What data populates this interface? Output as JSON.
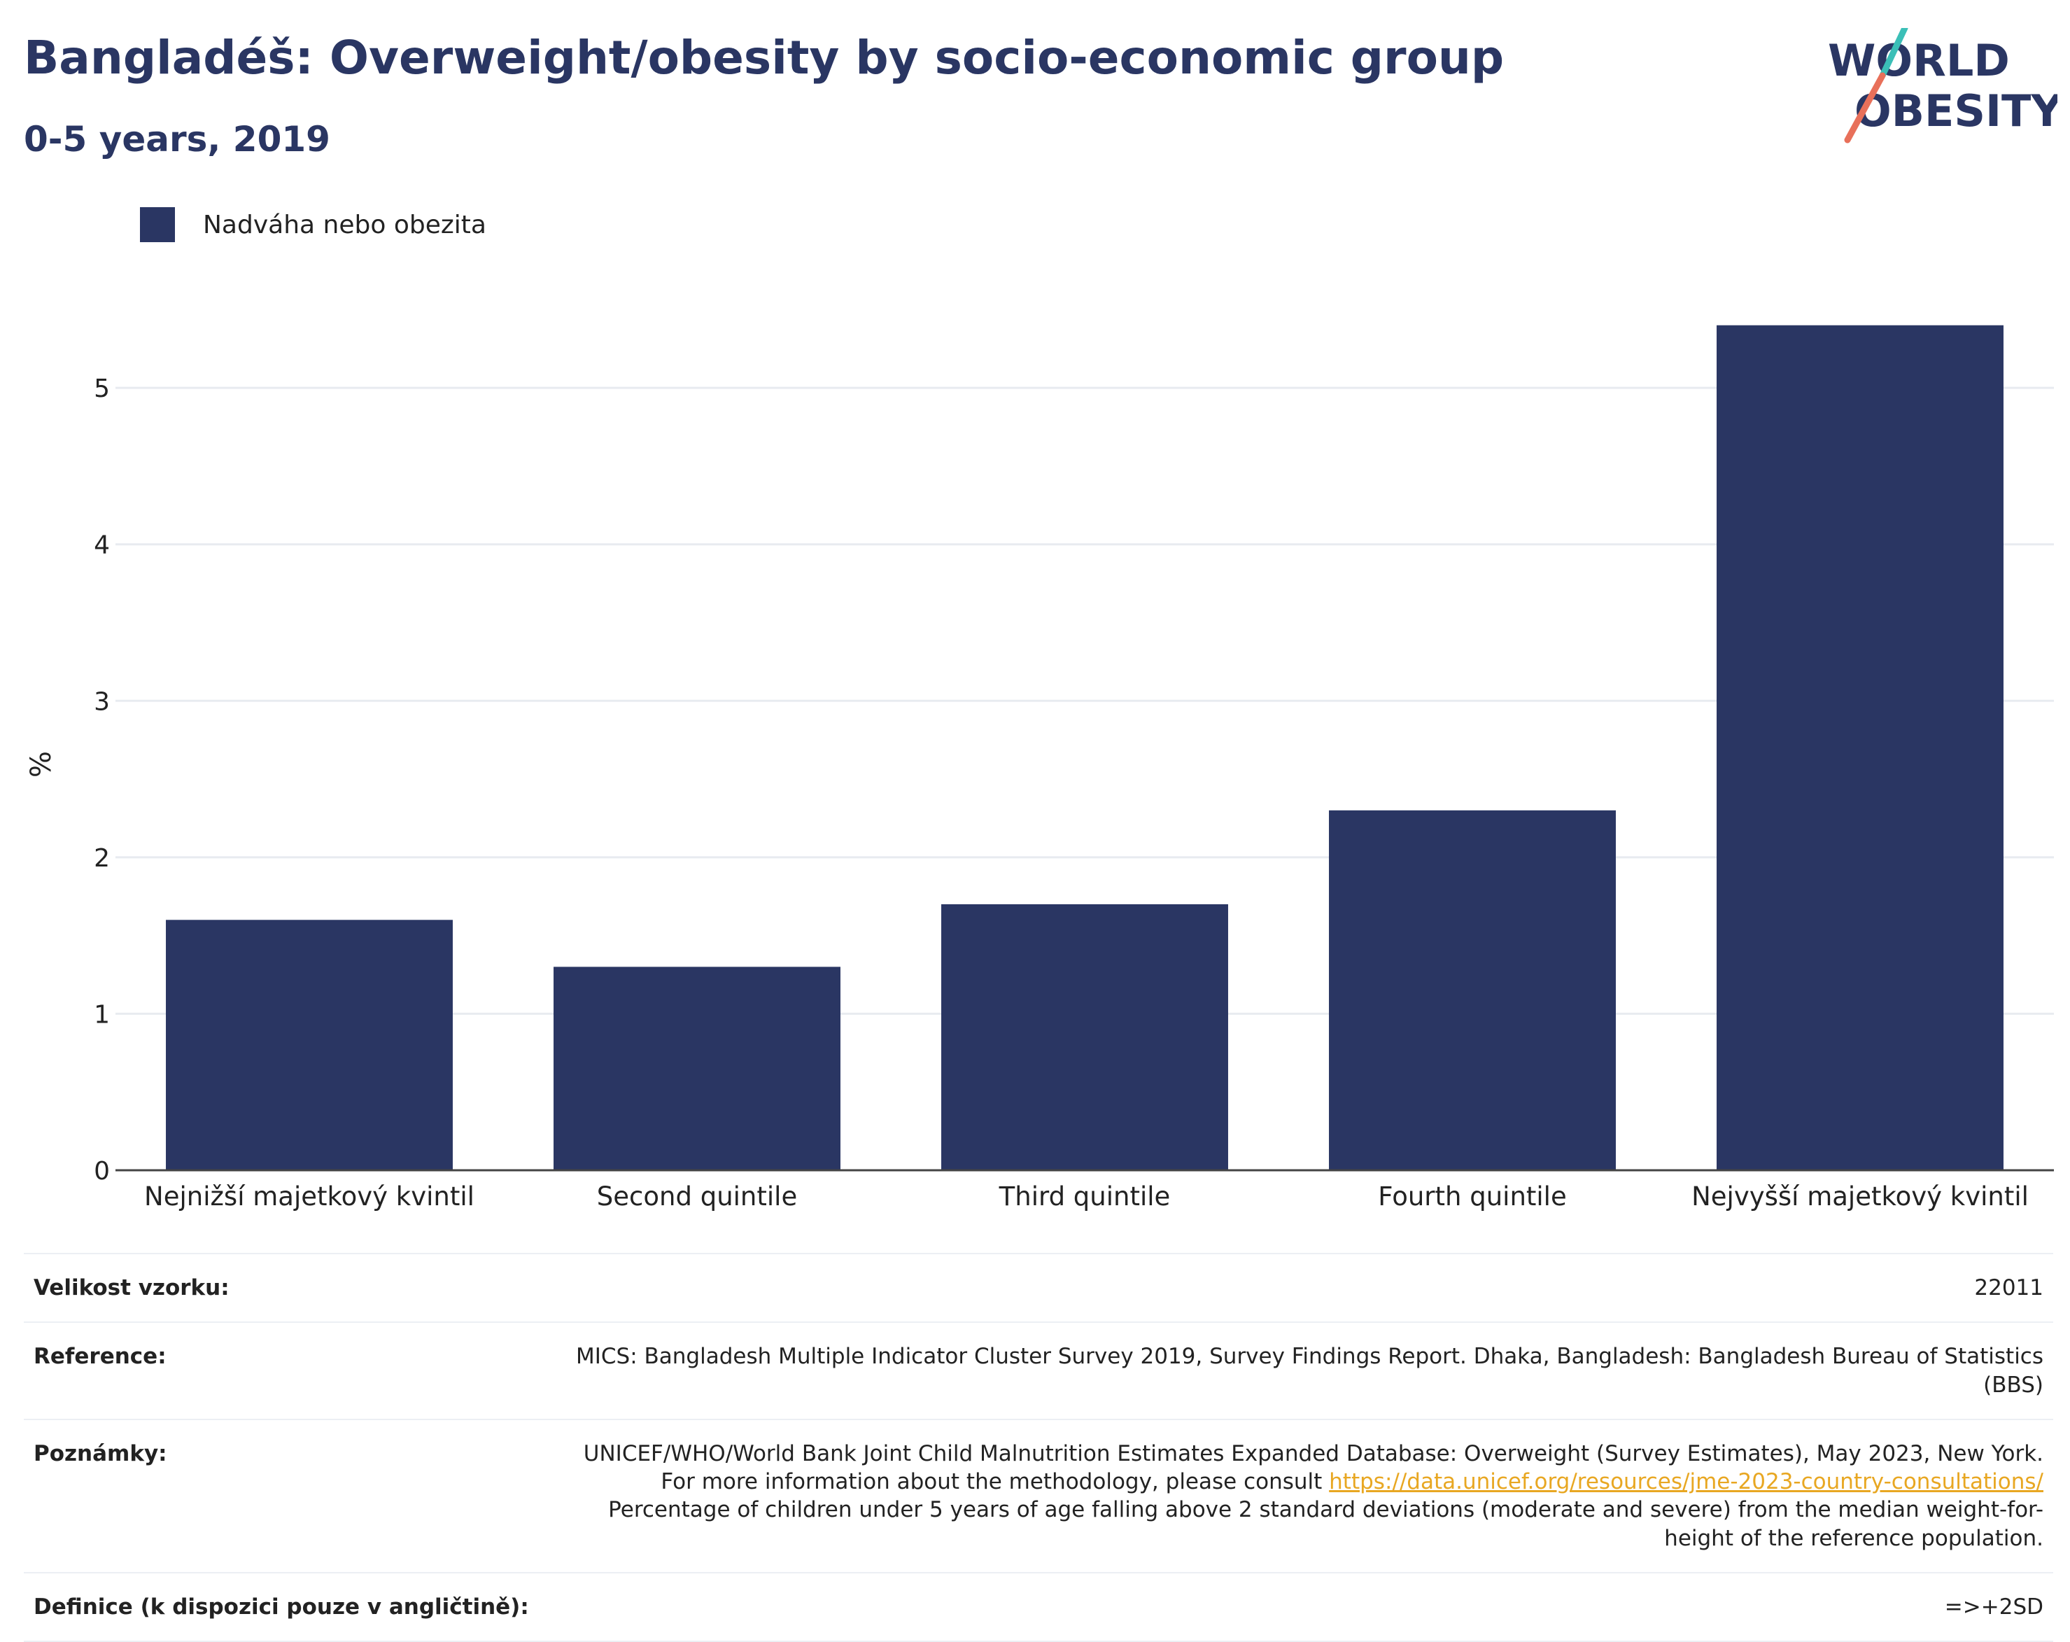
{
  "header": {
    "title": "Bangladéš: Overweight/obesity by socio-economic group",
    "subtitle": "0-5 years, 2019"
  },
  "logo": {
    "line1": "WORLD",
    "line2": "OBESITY",
    "colors": {
      "teal": "#3bbfb7",
      "coral": "#e8705a",
      "navy": "#2a3663"
    }
  },
  "legend": {
    "label": "Nadváha nebo obezita",
    "color": "#2a3663"
  },
  "chart_data": {
    "type": "bar",
    "categories": [
      "Nejnižší majetkový kvintil",
      "Second quintile",
      "Third quintile",
      "Fourth quintile",
      "Nejvyšší majetkový kvintil"
    ],
    "series": [
      {
        "name": "Nadváha nebo obezita",
        "values": [
          1.6,
          1.3,
          1.7,
          2.3,
          5.4
        ]
      }
    ],
    "ylabel": "%",
    "ylim": [
      0,
      5.6
    ],
    "yticks": [
      0,
      1,
      2,
      3,
      4,
      5
    ],
    "grid": true,
    "legend_position": "top-left",
    "bar_color": "#2a3663"
  },
  "info": {
    "sample_size": {
      "label": "Velikost vzorku:",
      "value": "22011"
    },
    "reference": {
      "label": "Reference:",
      "value": "MICS: Bangladesh Multiple Indicator Cluster Survey 2019, Survey Findings Report. Dhaka, Bangladesh: Bangladesh Bureau of Statistics (BBS)"
    },
    "notes": {
      "label": "Poznámky:",
      "text_before": "UNICEF/WHO/World Bank Joint Child Malnutrition Estimates Expanded Database: Overweight (Survey Estimates), May 2023, New York. For more information about the methodology, please consult ",
      "link": "https://data.unicef.org/resources/jme-2023-country-consultations/",
      "text_after": " Percentage of children under 5 years of age falling above 2 standard deviations (moderate and severe) from the median weight-for-height of the reference population."
    },
    "definition": {
      "label": "Definice (k dispozici pouze v angličtině):",
      "value": "=>+2SD"
    }
  }
}
